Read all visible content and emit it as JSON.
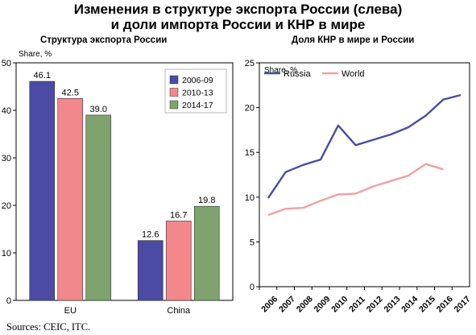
{
  "title": {
    "line1": "Изменения в структуре экспорта России (слева)",
    "line2": "и доли импорта России и КНР в мире"
  },
  "source": "Sources: CEIC, ITC.",
  "chart_data": [
    {
      "type": "bar",
      "title": "Структура экспорта России",
      "ylabel": "Share, %",
      "categories": [
        "EU",
        "China"
      ],
      "ylim": [
        0,
        50
      ],
      "yticks": [
        0,
        10,
        20,
        30,
        40,
        50
      ],
      "grid": false,
      "legend_position": "top-right",
      "series": [
        {
          "name": "2006-09",
          "values": [
            46.1,
            12.6
          ],
          "color": "#4B4BA6"
        },
        {
          "name": "2010-13",
          "values": [
            42.5,
            16.7
          ],
          "color": "#F2878C"
        },
        {
          "name": "2014-17",
          "values": [
            39.0,
            19.8
          ],
          "color": "#7FA36E"
        }
      ],
      "data_labels": [
        [
          "46.1",
          "12.6"
        ],
        [
          "42.5",
          "16.7"
        ],
        [
          "39.0",
          "19.8"
        ]
      ]
    },
    {
      "type": "line",
      "title": "Доля КНР в мире и России",
      "ylabel": "Share, %",
      "x": [
        "2006",
        "2007",
        "2008",
        "2009",
        "2010",
        "2011",
        "2012",
        "2013",
        "2014",
        "2015",
        "2016",
        "2017"
      ],
      "ylim": [
        0,
        25
      ],
      "yticks": [
        0,
        5,
        10,
        15,
        20,
        25
      ],
      "grid": false,
      "legend_position": "top-left",
      "series": [
        {
          "name": "Russia",
          "values": [
            9.9,
            12.8,
            13.6,
            14.2,
            18.0,
            15.8,
            16.4,
            17.0,
            17.8,
            19.1,
            20.9,
            21.4
          ],
          "color": "#4B4BA6"
        },
        {
          "name": "World",
          "values": [
            8.0,
            8.7,
            8.8,
            9.6,
            10.3,
            10.4,
            11.2,
            11.8,
            12.4,
            13.7,
            13.1,
            null
          ],
          "color": "#F2A0A4"
        }
      ]
    }
  ]
}
